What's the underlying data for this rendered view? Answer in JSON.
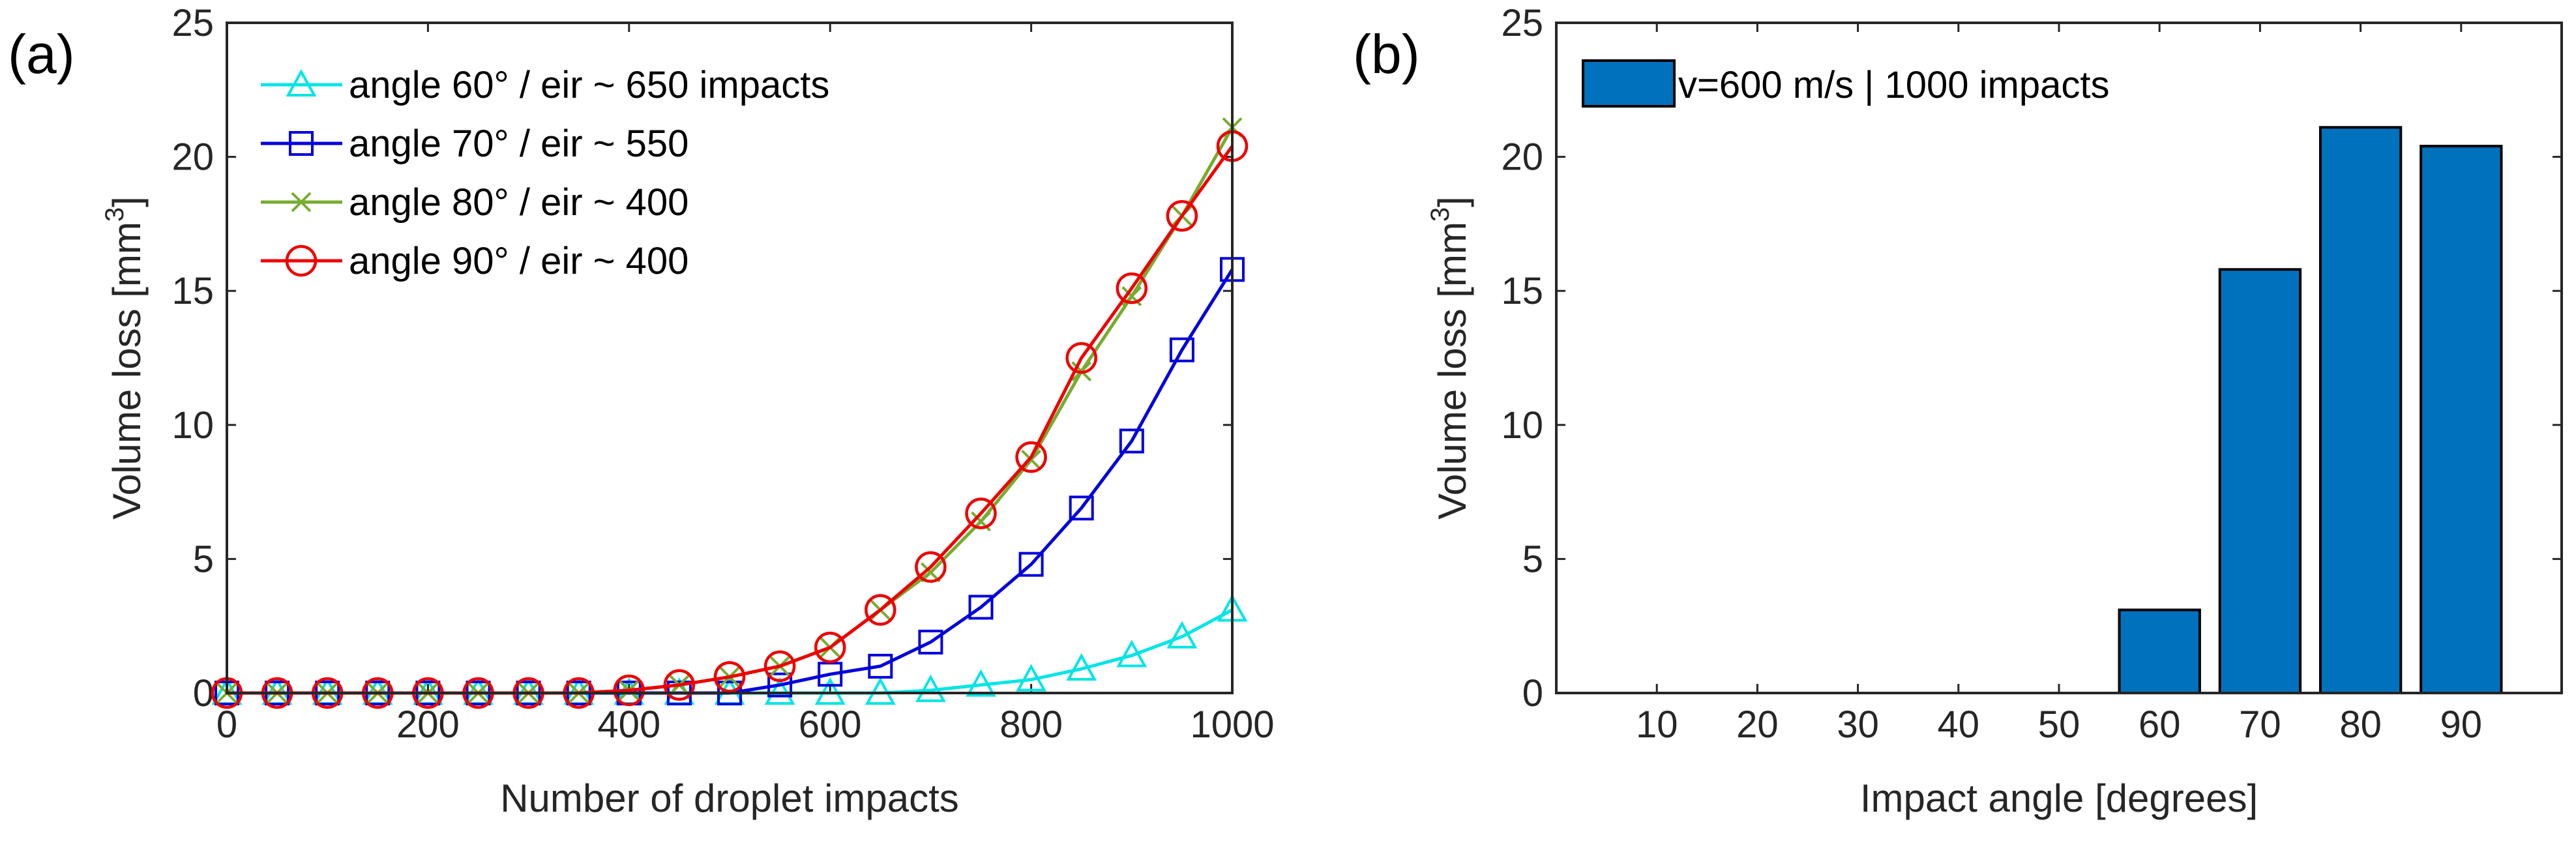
{
  "chart_data": [
    {
      "panel_label": "(a)",
      "type": "line",
      "xlabel": "Number of droplet impacts",
      "ylabel": "Volume loss [mm",
      "ylabel_superscript": "3",
      "ylabel_suffix": "]",
      "xlim": [
        0,
        1000
      ],
      "ylim": [
        0,
        25
      ],
      "xticks": [
        "0",
        "200",
        "400",
        "600",
        "800",
        "1000"
      ],
      "yticks": [
        "0",
        "5",
        "10",
        "15",
        "20",
        "25"
      ],
      "legend_position": "top-left",
      "x": [
        0,
        50,
        100,
        150,
        200,
        250,
        300,
        350,
        400,
        450,
        500,
        550,
        600,
        650,
        700,
        750,
        800,
        850,
        900,
        950,
        1000
      ],
      "series": [
        {
          "name": "angle 60° / eir ~ 650 impacts",
          "color": "#00e5e5",
          "marker": "triangle",
          "values": [
            0,
            0,
            0,
            0,
            0,
            0,
            0,
            0,
            0,
            0,
            0,
            0,
            0,
            0,
            0.1,
            0.3,
            0.5,
            0.9,
            1.4,
            2.1,
            3.1
          ]
        },
        {
          "name": "angle 70° / eir ~ 550",
          "color": "#0000dd",
          "marker": "square",
          "values": [
            0,
            0,
            0,
            0,
            0,
            0,
            0,
            0,
            0,
            0,
            0,
            0.3,
            0.7,
            1.0,
            1.9,
            3.2,
            4.8,
            6.9,
            9.4,
            12.8,
            15.8
          ]
        },
        {
          "name": "angle 80° / eir ~ 400",
          "color": "#77ac30",
          "marker": "x",
          "values": [
            0,
            0,
            0,
            0,
            0,
            0,
            0,
            0,
            0.1,
            0.3,
            0.6,
            1.0,
            1.7,
            3.1,
            4.5,
            6.4,
            8.7,
            12.0,
            14.8,
            17.8,
            21.1
          ]
        },
        {
          "name": "angle 90° / eir ~ 400",
          "color": "#ee0000",
          "marker": "circle",
          "values": [
            0,
            0,
            0,
            0,
            0,
            0,
            0,
            0,
            0.1,
            0.3,
            0.6,
            1.0,
            1.7,
            3.1,
            4.7,
            6.7,
            8.8,
            12.5,
            15.1,
            17.8,
            20.4
          ]
        }
      ]
    },
    {
      "panel_label": "(b)",
      "type": "bar",
      "xlabel": "Impact angle [degrees]",
      "ylabel": "Volume loss [mm",
      "ylabel_superscript": "3",
      "ylabel_suffix": "]",
      "ylim": [
        0,
        25
      ],
      "yticks": [
        "0",
        "5",
        "10",
        "15",
        "20",
        "25"
      ],
      "categories": [
        "10",
        "20",
        "30",
        "40",
        "50",
        "60",
        "70",
        "80",
        "90"
      ],
      "values": [
        0,
        0,
        0,
        0,
        0,
        3.1,
        15.8,
        21.1,
        20.4
      ],
      "bar_color": "#0072bd",
      "legend": "v=600 m/s | 1000 impacts",
      "legend_position": "top-left"
    }
  ]
}
